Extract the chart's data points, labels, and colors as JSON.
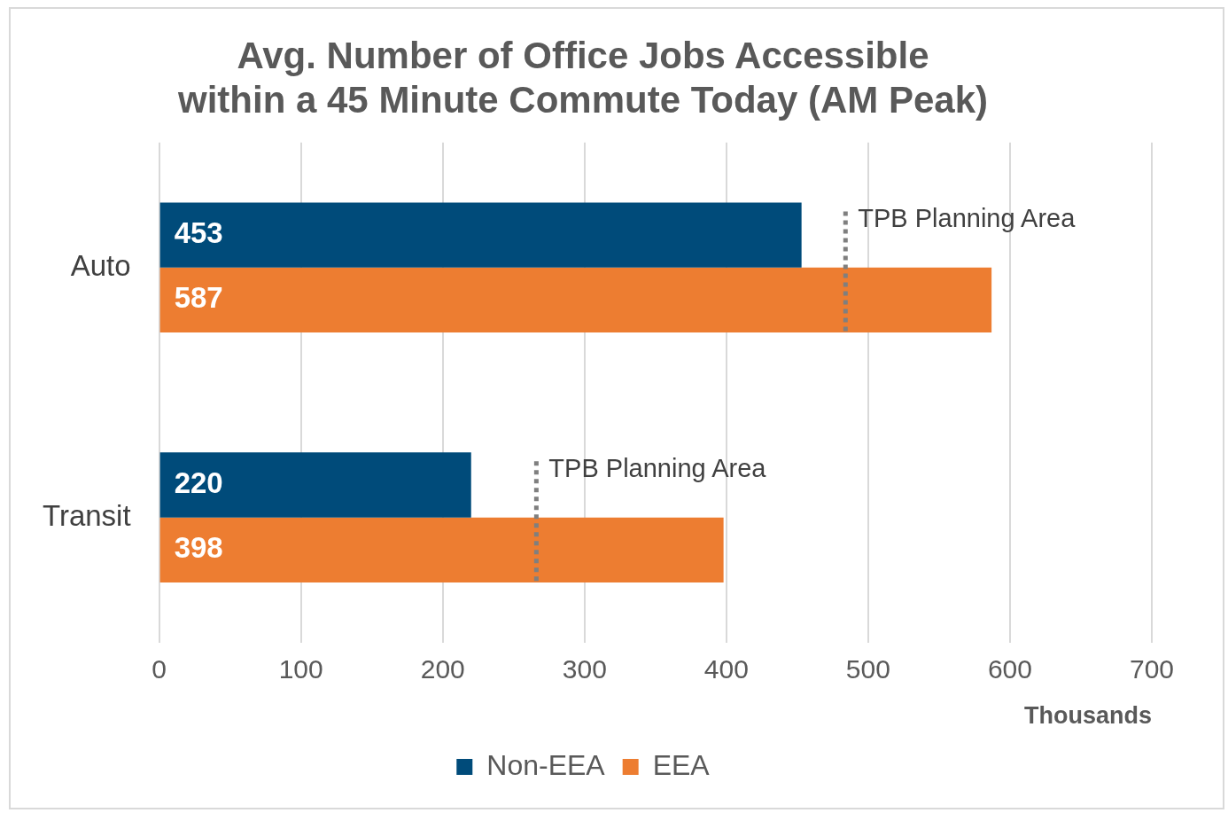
{
  "chart_data": {
    "type": "bar",
    "orientation": "horizontal",
    "title": "Avg. Number of Office Jobs Accessible\nwithin a 45 Minute Commute Today (AM Peak)",
    "xlabel": "Thousands",
    "categories": [
      "Auto",
      "Transit"
    ],
    "series": [
      {
        "name": "Non-EEA",
        "color": "#004b7a",
        "values": [
          453,
          220
        ]
      },
      {
        "name": "EEA",
        "color": "#ed7d31",
        "values": [
          587,
          398
        ]
      }
    ],
    "xlim": [
      0,
      700
    ],
    "xticks": [
      0,
      100,
      200,
      300,
      400,
      500,
      600,
      700
    ],
    "grid": "x",
    "legend": "bottom",
    "data_labels": true,
    "annotations": [
      {
        "text": "TPB Planning Area",
        "x": 484,
        "y": "Auto"
      },
      {
        "text": "TPB Planning Area",
        "x": 266,
        "y": "Transit"
      }
    ]
  }
}
